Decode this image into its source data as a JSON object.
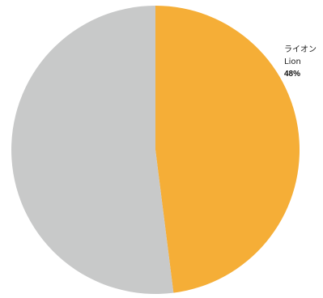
{
  "chart_data": {
    "type": "pie",
    "title": "",
    "start_angle_deg": 0,
    "direction": "clockwise",
    "slices": [
      {
        "label_ja": "ライオン",
        "label_en": "Lion",
        "value": 48,
        "value_label": "48%",
        "color": "#F5AE37",
        "labeled": true
      },
      {
        "label_ja": "",
        "label_en": "",
        "value": 52,
        "value_label": "",
        "color": "#C8C9C9",
        "labeled": false
      }
    ],
    "legend": "none",
    "background": "#FFFFFF"
  }
}
